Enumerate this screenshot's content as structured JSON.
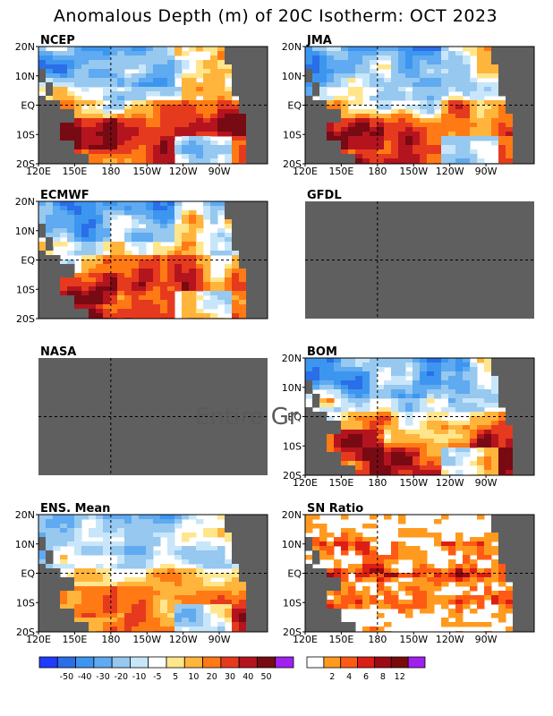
{
  "chart_data": {
    "type": "heatmap",
    "title": "Anomalous Depth (m) of 20C Isotherm: OCT 2023",
    "xticks": [
      "120E",
      "150E",
      "180",
      "150W",
      "120W",
      "90W"
    ],
    "yticks": [
      "20N",
      "10N",
      "EQ",
      "10S",
      "20S"
    ],
    "xlim": [
      "120E",
      "70W"
    ],
    "ylim": [
      "20S",
      "20N"
    ],
    "panels": [
      {
        "name": "NCEP",
        "has_data": true,
        "show_yticks": true,
        "show_xticks": true
      },
      {
        "name": "JMA",
        "has_data": true,
        "show_yticks": true,
        "show_xticks": true
      },
      {
        "name": "ECMWF",
        "has_data": true,
        "show_yticks": true,
        "show_xticks": false
      },
      {
        "name": "GFDL",
        "has_data": false,
        "show_yticks": false,
        "show_xticks": false
      },
      {
        "name": "NASA",
        "has_data": false,
        "show_yticks": false,
        "show_xticks": false
      },
      {
        "name": "BOM",
        "has_data": true,
        "show_yticks": true,
        "show_xticks": true
      },
      {
        "name": "ENS. Mean",
        "has_data": true,
        "show_yticks": true,
        "show_xticks": true
      },
      {
        "name": "SN Ratio",
        "has_data": true,
        "show_yticks": true,
        "show_xticks": true
      }
    ],
    "watermark": "Entire Gr",
    "colorbar_anomaly": {
      "labels": [
        "-50",
        "-40",
        "-30",
        "-20",
        "-10",
        "-5",
        "5",
        "10",
        "20",
        "30",
        "40",
        "50"
      ],
      "colors": [
        "#1e3cff",
        "#2a6ee8",
        "#3c96f0",
        "#5faaf0",
        "#96c8f0",
        "#c8e6fa",
        "#ffffff",
        "#ffe68c",
        "#ffb43c",
        "#ff7a14",
        "#e63a1e",
        "#b4141e",
        "#780a14",
        "#a020f0"
      ]
    },
    "colorbar_sn": {
      "labels": [
        "2",
        "4",
        "6",
        "8",
        "12"
      ],
      "colors": [
        "#ffffff",
        "#ff9a1e",
        "#ff5a14",
        "#dc1e14",
        "#9c0a14",
        "#7a0a0a",
        "#a020f0"
      ]
    }
  }
}
